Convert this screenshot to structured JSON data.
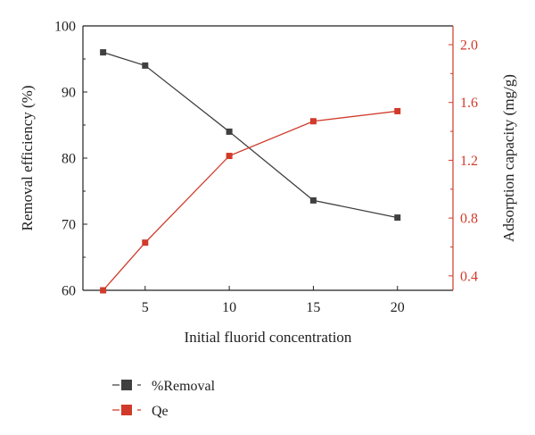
{
  "chart_data": {
    "type": "line",
    "xlabel": "Initial fluorid concentration",
    "ylabel_left": "Removal efficiency (%)",
    "ylabel_right": "Adsorption capacity (mg/g)",
    "xlim": [
      1.3,
      23.3
    ],
    "x_ticks": [
      5,
      10,
      15,
      20
    ],
    "y_left_lim": [
      60,
      100
    ],
    "y_left_ticks": [
      60,
      70,
      80,
      90,
      100
    ],
    "y_right_lim": [
      0.3,
      2.13
    ],
    "y_right_ticks": [
      0.4,
      0.8,
      1.2,
      1.6,
      2.0
    ],
    "grid": false,
    "legend_position": "bottom-left",
    "series": [
      {
        "name": "%Removal",
        "axis": "left",
        "color": "#404040",
        "x": [
          2.5,
          5,
          10,
          15,
          20
        ],
        "values": [
          96.0,
          94.0,
          84.0,
          73.6,
          71.0
        ]
      },
      {
        "name": "Qe",
        "axis": "right",
        "color": "#d03a2a",
        "x": [
          2.5,
          5,
          10,
          15,
          20
        ],
        "values": [
          0.3,
          0.63,
          1.23,
          1.47,
          1.54
        ]
      }
    ]
  }
}
